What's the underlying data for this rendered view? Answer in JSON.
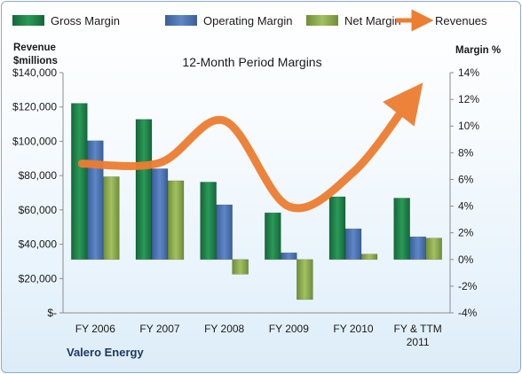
{
  "chart_data": {
    "type": "bar",
    "title": "12-Month Period Margins",
    "company": "Valero Energy",
    "left_axis": {
      "title_line1": "Revenue",
      "title_line2": "$millions",
      "range": [
        0,
        140000
      ],
      "ticks": [
        "$-",
        "$20,000",
        "$40,000",
        "$60,000",
        "$80,000",
        "$100,000",
        "$120,000",
        "$140,000"
      ]
    },
    "right_axis": {
      "title": "Margin %",
      "range": [
        -4,
        14
      ],
      "ticks": [
        "-4%",
        "-2%",
        "0%",
        "2%",
        "4%",
        "6%",
        "8%",
        "10%",
        "12%",
        "14%"
      ]
    },
    "categories": [
      {
        "line1": "FY 2006",
        "line2": ""
      },
      {
        "line1": "FY 2007",
        "line2": ""
      },
      {
        "line1": "FY 2008",
        "line2": ""
      },
      {
        "line1": "FY 2009",
        "line2": ""
      },
      {
        "line1": "FY 2010",
        "line2": ""
      },
      {
        "line1": "FY & TTM",
        "line2": "2011"
      }
    ],
    "series": [
      {
        "name": "Gross Margin",
        "axis": "right",
        "color": "#1e7b45",
        "values": [
          11.7,
          10.5,
          5.8,
          3.5,
          4.7,
          4.6
        ]
      },
      {
        "name": "Operating Margin",
        "axis": "right",
        "color": "#4a72b0",
        "values": [
          8.9,
          6.8,
          4.1,
          0.5,
          2.3,
          1.7
        ]
      },
      {
        "name": "Net Margin",
        "axis": "right",
        "color": "#8aaa4c",
        "values": [
          6.2,
          5.9,
          -1.1,
          -3.0,
          0.4,
          1.6
        ]
      },
      {
        "name": "Revenues",
        "axis": "left",
        "color": "#ed7d31",
        "type": "line",
        "values": [
          87000,
          87500,
          112000,
          62000,
          82000,
          125000
        ]
      }
    ],
    "legend_position": "top",
    "grid": false
  }
}
